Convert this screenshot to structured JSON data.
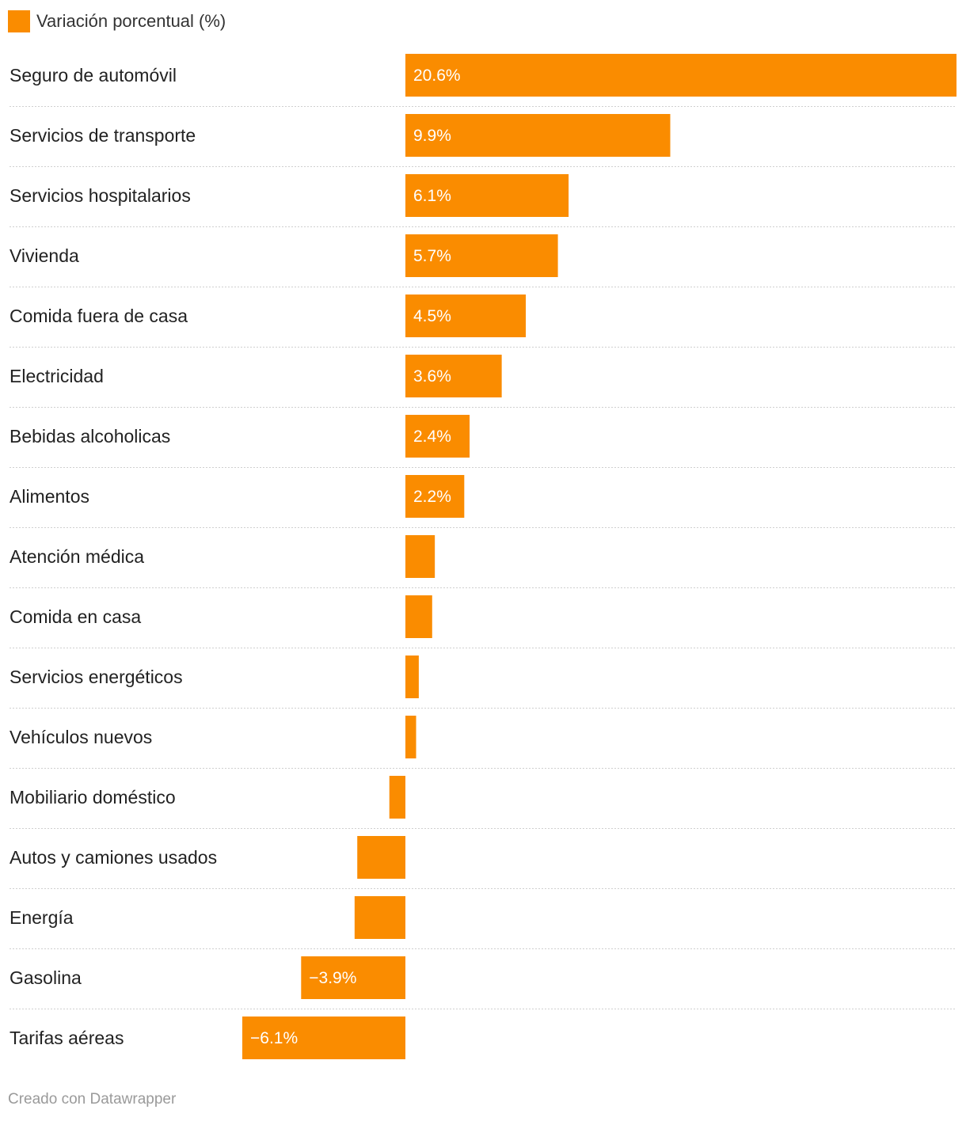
{
  "legend": {
    "label": "Variación porcentual (%)",
    "color": "#fa8c00"
  },
  "chart_data": {
    "type": "bar",
    "orientation": "horizontal",
    "categories": [
      "Seguro de automóvil",
      "Servicios de transporte",
      "Servicios hospitalarios",
      "Vivienda",
      "Comida fuera de casa",
      "Electricidad",
      "Bebidas alcoholicas",
      "Alimentos",
      "Atención médica",
      "Comida en casa",
      "Servicios energéticos",
      "Vehículos nuevos",
      "Mobiliario doméstico",
      "Autos y camiones usados",
      "Energía",
      "Gasolina",
      "Tarifas aéreas"
    ],
    "series": [
      {
        "name": "Variación porcentual (%)",
        "values": [
          20.6,
          9.9,
          6.1,
          5.7,
          4.5,
          3.6,
          2.4,
          2.2,
          1.1,
          1.0,
          0.5,
          0.4,
          -0.6,
          -1.8,
          -1.9,
          -3.9,
          -6.1
        ],
        "value_labels": [
          "20.6%",
          "9.9%",
          "6.1%",
          "5.7%",
          "4.5%",
          "3.6%",
          "2.4%",
          "2.2%",
          "",
          "",
          "",
          "",
          "",
          "",
          "",
          "−3.9%",
          "−6.1%"
        ],
        "color": "#fa8c00"
      }
    ],
    "xlim": [
      -6.1,
      20.6
    ],
    "grid": "dotted row separators",
    "legend_position": "top-left"
  },
  "footer": {
    "credit": "Creado con Datawrapper"
  }
}
